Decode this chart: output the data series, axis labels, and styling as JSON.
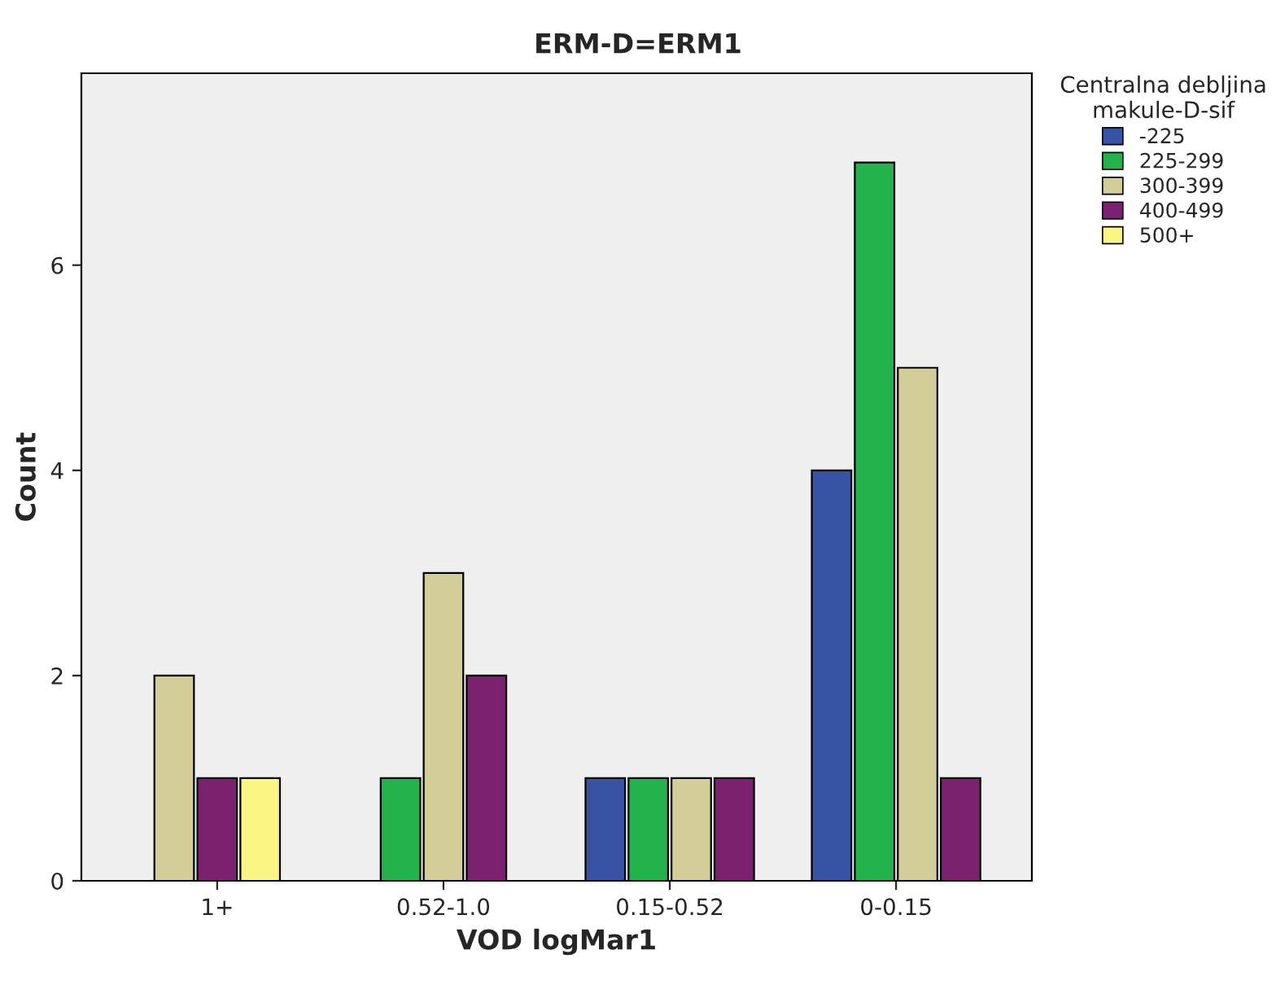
{
  "chart_data": {
    "type": "bar",
    "title": "ERM-D=ERM1",
    "xlabel": "VOD logMar1",
    "ylabel": "Count",
    "legend_title": "Centralna debljina\nmakule-D-sif",
    "categories": [
      "1+",
      "0.52-1.0",
      "0.15-0.52",
      "0-0.15"
    ],
    "series": [
      {
        "name": "-225",
        "color": "#3953a4",
        "values": [
          null,
          null,
          1,
          4
        ]
      },
      {
        "name": "225-299",
        "color": "#24b34b",
        "values": [
          null,
          1,
          1,
          7
        ]
      },
      {
        "name": "300-399",
        "color": "#d3ce97",
        "values": [
          2,
          3,
          1,
          5
        ]
      },
      {
        "name": "400-499",
        "color": "#7c2170",
        "values": [
          1,
          2,
          1,
          1
        ]
      },
      {
        "name": "500+",
        "color": "#fbf583",
        "values": [
          1,
          null,
          null,
          null
        ]
      }
    ],
    "ylim": [
      0,
      7.87
    ],
    "yticks": [
      0,
      2,
      4,
      6
    ],
    "grid": false,
    "legend": "right"
  }
}
